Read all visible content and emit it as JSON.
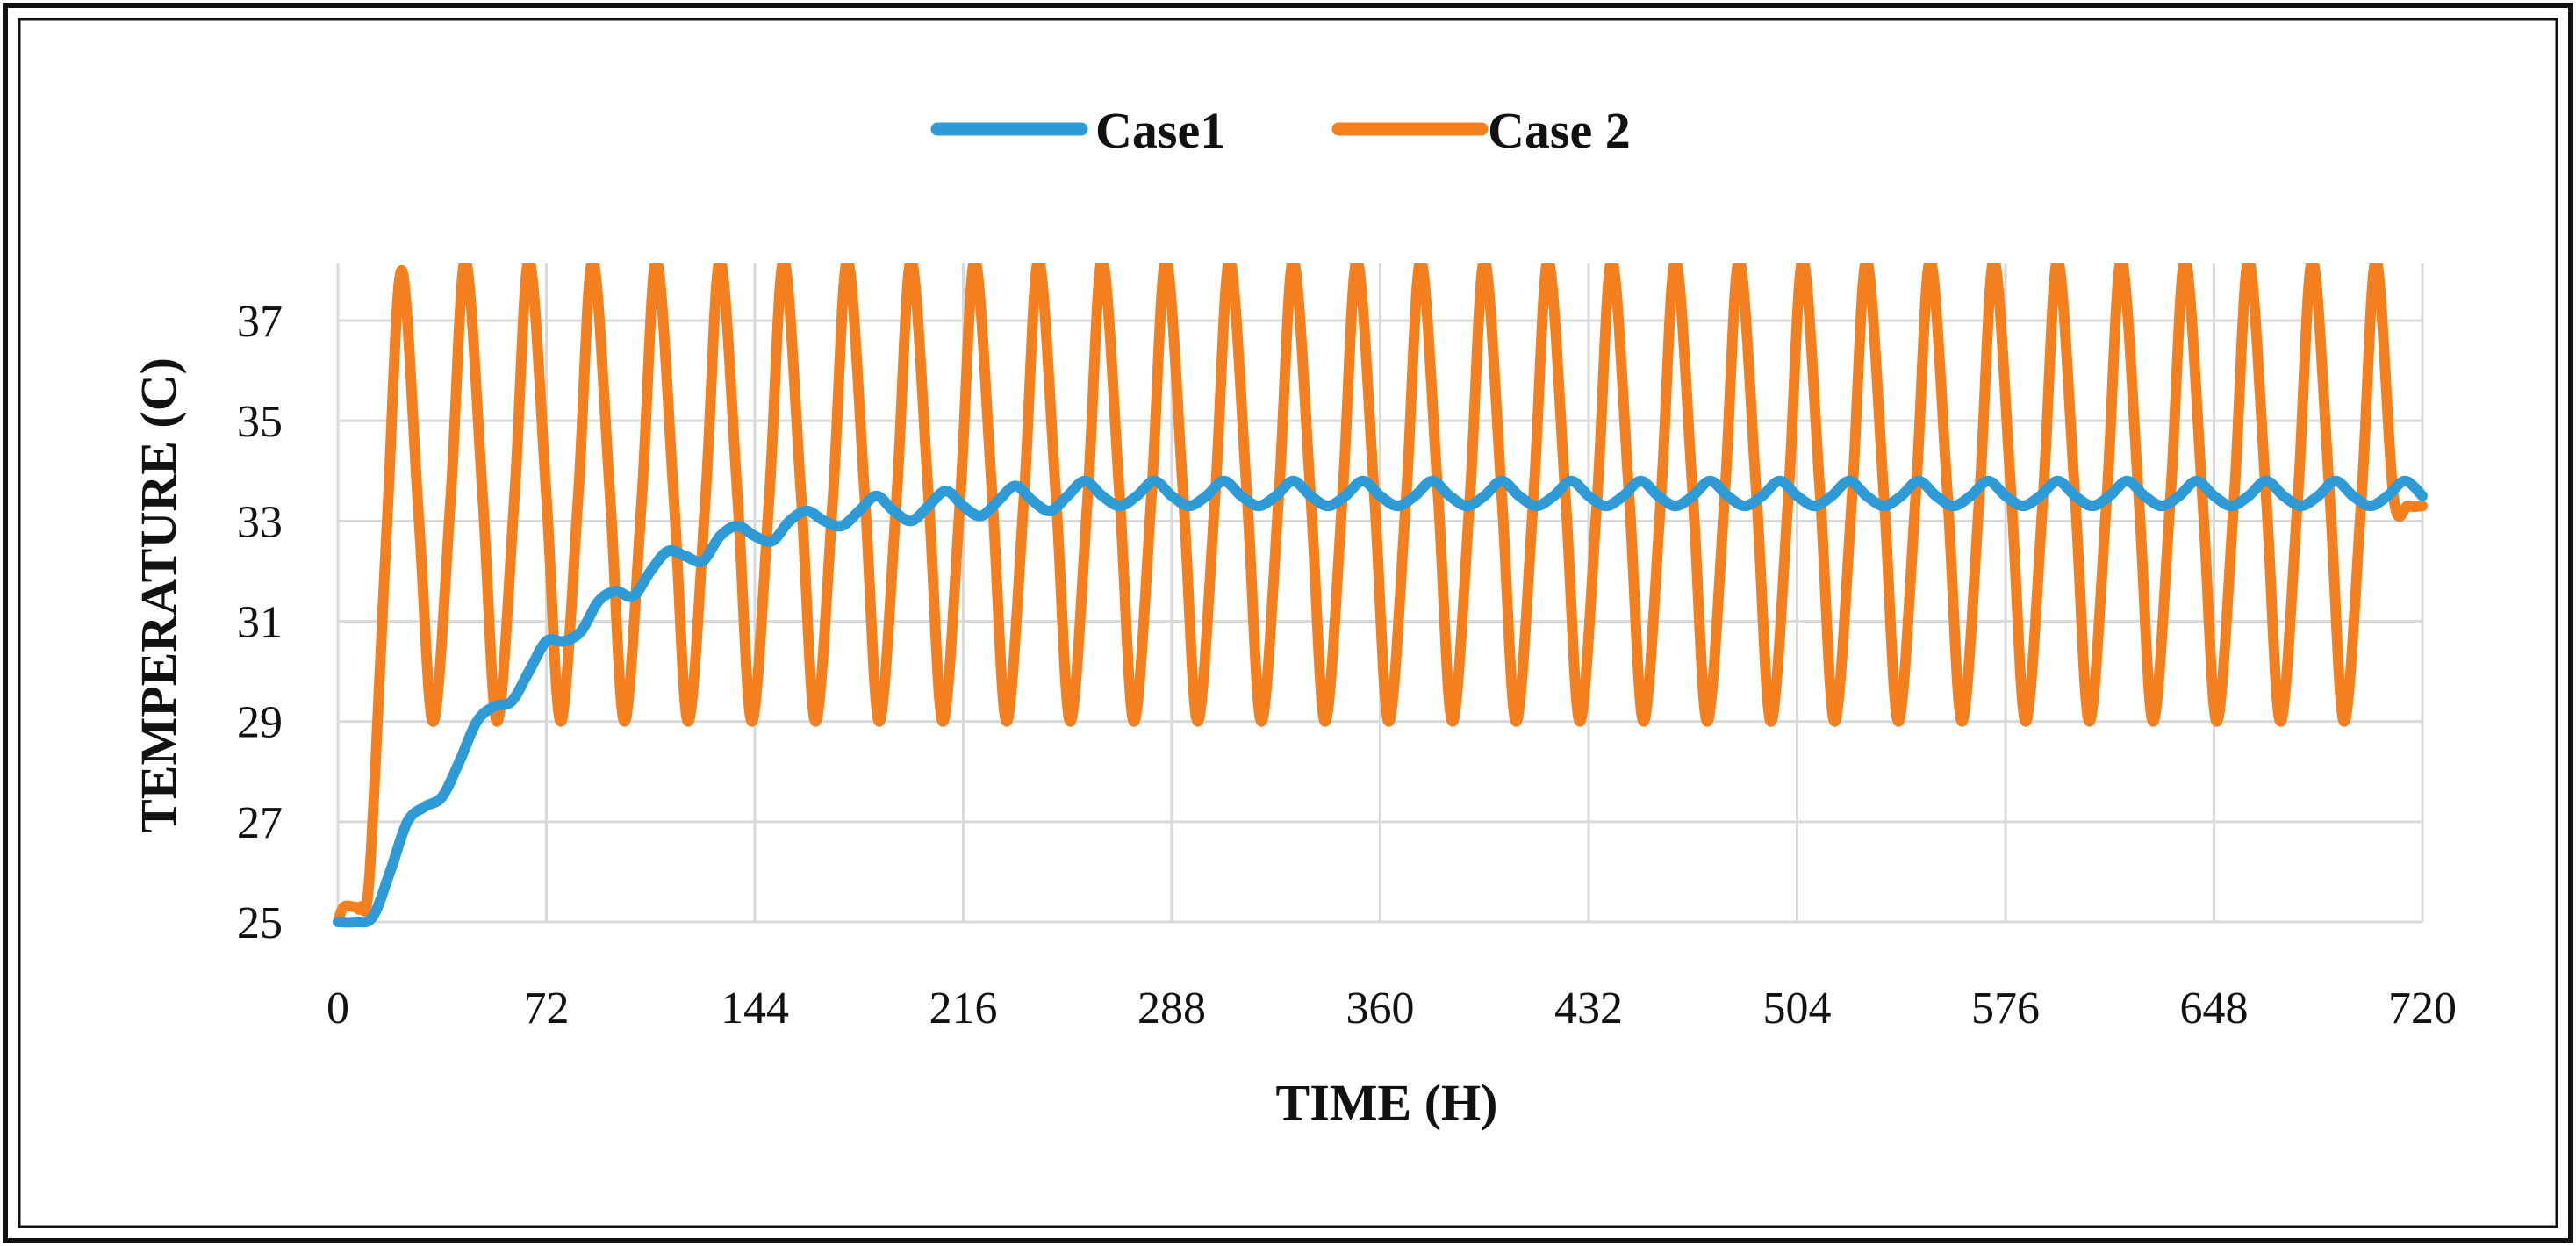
{
  "chart_data": {
    "type": "line",
    "title": "",
    "xlabel": "TIME (H)",
    "ylabel": "TEMPERATURE (C)",
    "xlim": [
      0,
      720
    ],
    "ylim": [
      25,
      38.3
    ],
    "x_ticks": [
      0,
      72,
      144,
      216,
      288,
      360,
      432,
      504,
      576,
      648,
      720
    ],
    "y_ticks": [
      25,
      27,
      29,
      31,
      33,
      35,
      37
    ],
    "grid": true,
    "legend_position": "top-center",
    "colors": {
      "case1": "#2e9bd6",
      "case2": "#f47f1f",
      "grid": "#d9d9d9",
      "frame": "#111111"
    },
    "series": [
      {
        "name": "Case1",
        "color": "#2e9bd6",
        "x": [
          0,
          6,
          12,
          18,
          24,
          30,
          36,
          42,
          48,
          54,
          60,
          66,
          72,
          78,
          84,
          90,
          96,
          102,
          108,
          114,
          120,
          126,
          132,
          138,
          144,
          150,
          156,
          162,
          168,
          174,
          180,
          186,
          192,
          198,
          204,
          210,
          216,
          222,
          228,
          234,
          240,
          246,
          252,
          258,
          264,
          270,
          276,
          282,
          288,
          294,
          300,
          306,
          312,
          318,
          324,
          330,
          336,
          342,
          348,
          354,
          360,
          366,
          372,
          378,
          384,
          390,
          396,
          402,
          408,
          414,
          420,
          426,
          432,
          438,
          444,
          450,
          456,
          462,
          468,
          474,
          480,
          486,
          492,
          498,
          504,
          510,
          516,
          522,
          528,
          534,
          540,
          546,
          552,
          558,
          564,
          570,
          576,
          582,
          588,
          594,
          600,
          606,
          612,
          618,
          624,
          630,
          636,
          642,
          648,
          654,
          660,
          666,
          672,
          678,
          684,
          690,
          696,
          702,
          708,
          714,
          720
        ],
        "values": [
          25.0,
          25.0,
          25.1,
          26.0,
          27.0,
          27.3,
          27.5,
          28.2,
          29.0,
          29.3,
          29.4,
          30.0,
          30.6,
          30.6,
          30.8,
          31.4,
          31.6,
          31.5,
          32.0,
          32.4,
          32.3,
          32.2,
          32.7,
          32.9,
          32.7,
          32.6,
          33.0,
          33.2,
          33.0,
          32.9,
          33.2,
          33.5,
          33.2,
          33.0,
          33.3,
          33.6,
          33.3,
          33.1,
          33.4,
          33.7,
          33.4,
          33.2,
          33.5,
          33.8,
          33.5,
          33.3,
          33.5,
          33.8,
          33.5,
          33.3,
          33.5,
          33.8,
          33.5,
          33.3,
          33.5,
          33.8,
          33.5,
          33.3,
          33.5,
          33.8,
          33.5,
          33.3,
          33.5,
          33.8,
          33.5,
          33.3,
          33.5,
          33.8,
          33.5,
          33.3,
          33.5,
          33.8,
          33.5,
          33.3,
          33.5,
          33.8,
          33.5,
          33.3,
          33.5,
          33.8,
          33.5,
          33.3,
          33.5,
          33.8,
          33.5,
          33.3,
          33.5,
          33.8,
          33.5,
          33.3,
          33.5,
          33.8,
          33.5,
          33.3,
          33.5,
          33.8,
          33.5,
          33.3,
          33.5,
          33.8,
          33.5,
          33.3,
          33.5,
          33.8,
          33.5,
          33.3,
          33.5,
          33.8,
          33.5,
          33.3,
          33.5,
          33.8,
          33.5,
          33.3,
          33.5,
          33.8,
          33.5,
          33.3,
          33.5,
          33.8,
          33.5
        ]
      },
      {
        "name": "Case 2",
        "color": "#f47f1f",
        "x": [
          0,
          2,
          6,
          8,
          11,
          17,
          22,
          28,
          33,
          39,
          44,
          50,
          55,
          61,
          66,
          72,
          77,
          83,
          88,
          94,
          99,
          105,
          110,
          116,
          121,
          127,
          132,
          138,
          143,
          149,
          154,
          160,
          165,
          171,
          176,
          182,
          187,
          193,
          198,
          204,
          209,
          215,
          220,
          226,
          231,
          237,
          242,
          248,
          253,
          259,
          264,
          270,
          275,
          281,
          286,
          292,
          297,
          303,
          308,
          314,
          319,
          325,
          330,
          336,
          341,
          347,
          352,
          358,
          363,
          369,
          374,
          380,
          385,
          391,
          396,
          402,
          407,
          413,
          418,
          424,
          429,
          435,
          440,
          446,
          451,
          457,
          462,
          468,
          473,
          479,
          484,
          490,
          495,
          501,
          506,
          512,
          517,
          523,
          528,
          534,
          539,
          545,
          550,
          556,
          561,
          567,
          572,
          578,
          583,
          589,
          594,
          600,
          605,
          611,
          616,
          622,
          627,
          633,
          638,
          644,
          649,
          655,
          660,
          666,
          671,
          677,
          682,
          688,
          693,
          699,
          704,
          710,
          715,
          720
        ],
        "values": [
          25.0,
          25.3,
          25.3,
          25.3,
          26.0,
          33.0,
          38.0,
          33.0,
          29.0,
          33.5,
          38.2,
          33.5,
          29.0,
          33.5,
          38.2,
          33.5,
          29.0,
          33.5,
          38.2,
          33.5,
          29.0,
          33.5,
          38.2,
          33.5,
          29.0,
          33.5,
          38.2,
          33.5,
          29.0,
          33.5,
          38.2,
          33.5,
          29.0,
          33.5,
          38.2,
          33.5,
          29.0,
          33.5,
          38.2,
          33.5,
          29.0,
          33.5,
          38.2,
          33.5,
          29.0,
          33.5,
          38.2,
          33.5,
          29.0,
          33.5,
          38.2,
          33.5,
          29.0,
          33.5,
          38.2,
          33.5,
          29.0,
          33.5,
          38.2,
          33.5,
          29.0,
          33.5,
          38.2,
          33.5,
          29.0,
          33.5,
          38.2,
          33.5,
          29.0,
          33.5,
          38.2,
          33.5,
          29.0,
          33.5,
          38.2,
          33.5,
          29.0,
          33.5,
          38.2,
          33.5,
          29.0,
          33.5,
          38.2,
          33.5,
          29.0,
          33.5,
          38.2,
          33.5,
          29.0,
          33.5,
          38.2,
          33.5,
          29.0,
          33.5,
          38.2,
          33.5,
          29.0,
          33.5,
          38.2,
          33.5,
          29.0,
          33.5,
          38.2,
          33.5,
          29.0,
          33.5,
          38.2,
          33.5,
          29.0,
          33.5,
          38.2,
          33.5,
          29.0,
          33.5,
          38.2,
          33.5,
          29.0,
          33.5,
          38.2,
          33.5,
          29.0,
          33.5,
          38.2,
          33.5,
          29.0,
          33.5,
          38.2,
          33.5,
          29.0,
          33.5,
          38.2,
          33.5,
          33.3,
          33.3
        ]
      }
    ]
  }
}
